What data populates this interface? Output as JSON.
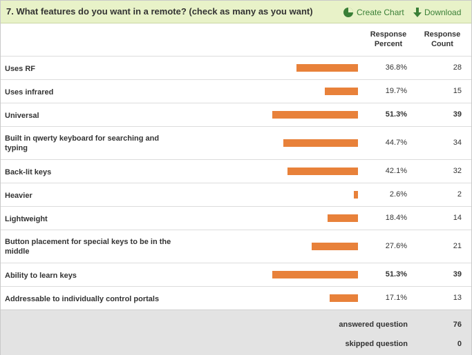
{
  "question": {
    "title": "7. What features do you want in a remote? (check as many as you want)"
  },
  "actions": {
    "create_chart": "Create Chart",
    "download": "Download",
    "create_chart_icon": "pie-chart-icon",
    "download_icon": "download-arrow-icon"
  },
  "columns": {
    "percent_line1": "Response",
    "percent_line2": "Percent",
    "count_line1": "Response",
    "count_line2": "Count"
  },
  "colors": {
    "bar": "#e8813a",
    "header_bg": "#e8f2c8",
    "action_text": "#3a7f37",
    "footer_bg": "#e3e3e3"
  },
  "chart_data": {
    "type": "bar",
    "categories": [
      "Uses RF",
      "Uses infrared",
      "Universal",
      "Built in qwerty keyboard for searching and typing",
      "Back-lit keys",
      "Heavier",
      "Lightweight",
      "Button placement for special keys to be in the middle",
      "Ability to learn keys",
      "Addressable to individually control portals"
    ],
    "percent_values": [
      36.8,
      19.7,
      51.3,
      44.7,
      42.1,
      2.6,
      18.4,
      27.6,
      51.3,
      17.1
    ],
    "count_values": [
      28,
      15,
      39,
      34,
      32,
      2,
      14,
      21,
      39,
      13
    ]
  },
  "rows": [
    {
      "label": "Uses RF",
      "percent": "36.8%",
      "count": "28",
      "value": 36.8,
      "bold": false
    },
    {
      "label": "Uses infrared",
      "percent": "19.7%",
      "count": "15",
      "value": 19.7,
      "bold": false
    },
    {
      "label": "Universal",
      "percent": "51.3%",
      "count": "39",
      "value": 51.3,
      "bold": true
    },
    {
      "label": "Built in qwerty keyboard for searching and typing",
      "percent": "44.7%",
      "count": "34",
      "value": 44.7,
      "bold": false
    },
    {
      "label": "Back-lit keys",
      "percent": "42.1%",
      "count": "32",
      "value": 42.1,
      "bold": false
    },
    {
      "label": "Heavier",
      "percent": "2.6%",
      "count": "2",
      "value": 2.6,
      "bold": false
    },
    {
      "label": "Lightweight",
      "percent": "18.4%",
      "count": "14",
      "value": 18.4,
      "bold": false
    },
    {
      "label": "Button placement for special keys to be in the middle",
      "percent": "27.6%",
      "count": "21",
      "value": 27.6,
      "bold": false
    },
    {
      "label": "Ability to learn keys",
      "percent": "51.3%",
      "count": "39",
      "value": 51.3,
      "bold": true
    },
    {
      "label": "Addressable to individually control portals",
      "percent": "17.1%",
      "count": "13",
      "value": 17.1,
      "bold": false
    }
  ],
  "summary": {
    "answered_label": "answered question",
    "answered_value": "76",
    "skipped_label": "skipped question",
    "skipped_value": "0"
  }
}
